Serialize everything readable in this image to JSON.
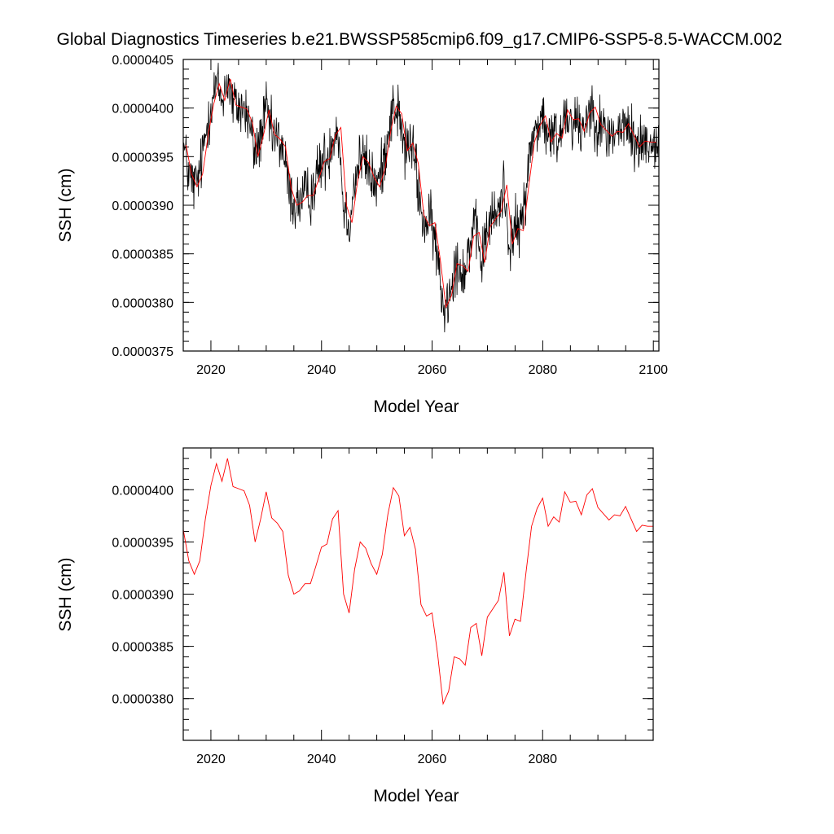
{
  "title": "Global Diagnostics Timeseries b.e21.BWSSP585cmip6.f09_g17.CMIP6-SSP5-8.5-WACCM.002",
  "colors": {
    "monthly": "#000000",
    "annual": "#ff0000",
    "frame": "#000000"
  },
  "chart_data": [
    {
      "type": "line",
      "xlabel": "Model Year",
      "ylabel": "SSH (cm)",
      "xlim": [
        2015,
        2101
      ],
      "ylim": [
        3.75e-05,
        4.05e-05
      ],
      "x_ticks": [
        "2020",
        "2040",
        "2060",
        "2080",
        "2100"
      ],
      "y_ticks": [
        "0.0000375",
        "0.0000380",
        "0.0000385",
        "0.0000390",
        "0.0000395",
        "0.0000400",
        "0.0000405"
      ],
      "grid": false,
      "series": [
        {
          "color": "black",
          "resolution": "monthly",
          "x_start": 2015.0,
          "x_end": 2100.9,
          "values": []
        },
        {
          "color": "red",
          "resolution": "annual",
          "x": [
            2015,
            2016,
            2017,
            2018,
            2019,
            2020,
            2021,
            2022,
            2023,
            2024,
            2025,
            2026,
            2027,
            2028,
            2029,
            2030,
            2031,
            2032,
            2033,
            2034,
            2035,
            2036,
            2037,
            2038,
            2039,
            2040,
            2041,
            2042,
            2043,
            2044,
            2045,
            2046,
            2047,
            2048,
            2049,
            2050,
            2051,
            2052,
            2053,
            2054,
            2055,
            2056,
            2057,
            2058,
            2059,
            2060,
            2061,
            2062,
            2063,
            2064,
            2065,
            2066,
            2067,
            2068,
            2069,
            2070,
            2071,
            2072,
            2073,
            2074,
            2075,
            2076,
            2077,
            2078,
            2079,
            2080,
            2081,
            2082,
            2083,
            2084,
            2085,
            2086,
            2087,
            2088,
            2089,
            2090,
            2091,
            2092,
            2093,
            2094,
            2095,
            2096,
            2097,
            2098,
            2099,
            2100
          ],
          "values": [
            3.962e-05,
            3.932e-05,
            3.919e-05,
            3.932e-05,
            3.972e-05,
            4.004e-05,
            4.025e-05,
            4.008e-05,
            4.03e-05,
            4.003e-05,
            4.001e-05,
            3.999e-05,
            3.985e-05,
            3.95e-05,
            3.972e-05,
            3.998e-05,
            3.973e-05,
            3.968e-05,
            3.96e-05,
            3.918e-05,
            3.9e-05,
            3.903e-05,
            3.91e-05,
            3.91e-05,
            3.927e-05,
            3.945e-05,
            3.948e-05,
            3.972e-05,
            3.98e-05,
            3.9e-05,
            3.882e-05,
            3.924e-05,
            3.95e-05,
            3.944e-05,
            3.929e-05,
            3.919e-05,
            3.938e-05,
            3.976e-05,
            4.002e-05,
            3.994e-05,
            3.956e-05,
            3.964e-05,
            3.943e-05,
            3.89e-05,
            3.879e-05,
            3.882e-05,
            3.843e-05,
            3.795e-05,
            3.807e-05,
            3.84e-05,
            3.838e-05,
            3.832e-05,
            3.868e-05,
            3.872e-05,
            3.841e-05,
            3.878e-05,
            3.886e-05,
            3.894e-05,
            3.921e-05,
            3.86e-05,
            3.876e-05,
            3.874e-05,
            3.921e-05,
            3.965e-05,
            3.982e-05,
            3.992e-05,
            3.965e-05,
            3.974e-05,
            3.969e-05,
            3.998e-05,
            3.988e-05,
            3.989e-05,
            3.976e-05,
            3.995e-05,
            4.001e-05,
            3.983e-05,
            3.977e-05,
            3.971e-05,
            3.976e-05,
            3.975e-05,
            3.984e-05,
            3.972e-05,
            3.96e-05,
            3.966e-05,
            3.965e-05,
            3.965e-05
          ]
        }
      ]
    },
    {
      "type": "line",
      "xlabel": "Model Year",
      "ylabel": "SSH (cm)",
      "xlim": [
        2015,
        2100
      ],
      "ylim": [
        3.76e-05,
        4.04e-05
      ],
      "x_ticks": [
        "2020",
        "2040",
        "2060",
        "2080"
      ],
      "y_ticks": [
        "0.0000380",
        "0.0000385",
        "0.0000390",
        "0.0000395",
        "0.0000400"
      ],
      "grid": false,
      "series": [
        {
          "color": "red",
          "resolution": "annual",
          "source": "annual"
        }
      ]
    }
  ]
}
